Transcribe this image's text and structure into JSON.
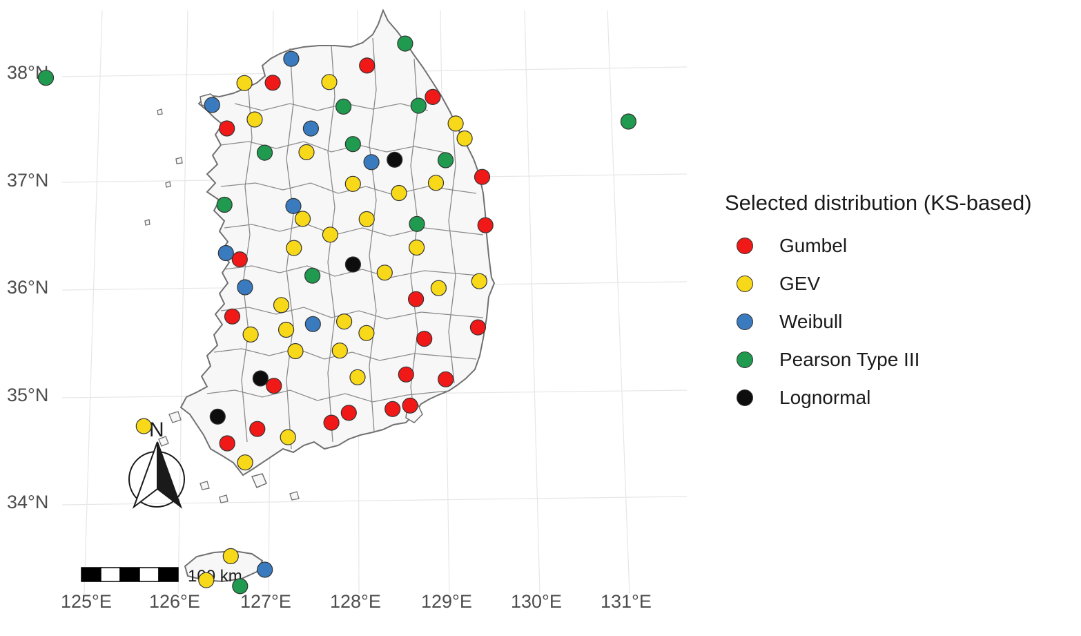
{
  "legend": {
    "title": "Selected distribution (KS-based)",
    "items": [
      {
        "label": "Gumbel",
        "color": "#f11818"
      },
      {
        "label": "GEV",
        "color": "#f8d91a"
      },
      {
        "label": "Weibull",
        "color": "#3a7bbf"
      },
      {
        "label": "Pearson Type III",
        "color": "#1f9a4f"
      },
      {
        "label": "Lognormal",
        "color": "#0d0d0d"
      }
    ]
  },
  "axes": {
    "lat_labels": [
      "38°N",
      "37°N",
      "36°N",
      "35°N",
      "34°N"
    ],
    "lon_labels": [
      "125°E",
      "126°E",
      "127°E",
      "128°E",
      "129°E",
      "130°E",
      "131°E"
    ]
  },
  "scale_bar": {
    "label": "100 km"
  },
  "north_arrow": {
    "label": "N"
  },
  "chart_data": {
    "type": "scatter",
    "title": "",
    "legend_title": "Selected distribution (KS-based)",
    "xlabel": "",
    "ylabel": "",
    "xlim": [
      124.8,
      131.5
    ],
    "ylim": [
      33.1,
      38.6
    ],
    "series": [
      {
        "name": "Gumbel",
        "points": [
          {
            "lon": 128.1,
            "lat": 38.05
          },
          {
            "lon": 127.1,
            "lat": 37.9
          },
          {
            "lon": 128.8,
            "lat": 37.75
          },
          {
            "lon": 126.6,
            "lat": 37.48
          },
          {
            "lon": 129.35,
            "lat": 37.0
          },
          {
            "lon": 129.4,
            "lat": 36.55
          },
          {
            "lon": 126.7,
            "lat": 36.26
          },
          {
            "lon": 128.65,
            "lat": 35.87
          },
          {
            "lon": 126.6,
            "lat": 35.73
          },
          {
            "lon": 129.35,
            "lat": 35.6
          },
          {
            "lon": 128.75,
            "lat": 35.5
          },
          {
            "lon": 127.05,
            "lat": 35.08
          },
          {
            "lon": 128.55,
            "lat": 35.17
          },
          {
            "lon": 129.0,
            "lat": 35.12
          },
          {
            "lon": 127.9,
            "lat": 34.82
          },
          {
            "lon": 127.7,
            "lat": 34.73
          },
          {
            "lon": 128.4,
            "lat": 34.85
          },
          {
            "lon": 128.6,
            "lat": 34.88
          },
          {
            "lon": 126.85,
            "lat": 34.68
          },
          {
            "lon": 126.5,
            "lat": 34.55
          }
        ]
      },
      {
        "name": "GEV",
        "points": [
          {
            "lon": 126.8,
            "lat": 37.9
          },
          {
            "lon": 127.7,
            "lat": 37.9
          },
          {
            "lon": 126.9,
            "lat": 37.56
          },
          {
            "lon": 129.05,
            "lat": 37.5
          },
          {
            "lon": 129.15,
            "lat": 37.36
          },
          {
            "lon": 127.45,
            "lat": 37.25
          },
          {
            "lon": 127.95,
            "lat": 36.95
          },
          {
            "lon": 128.85,
            "lat": 36.95
          },
          {
            "lon": 128.45,
            "lat": 36.86
          },
          {
            "lon": 127.4,
            "lat": 36.63
          },
          {
            "lon": 128.1,
            "lat": 36.62
          },
          {
            "lon": 127.7,
            "lat": 36.48
          },
          {
            "lon": 127.3,
            "lat": 36.36
          },
          {
            "lon": 128.65,
            "lat": 36.35
          },
          {
            "lon": 128.3,
            "lat": 36.12
          },
          {
            "lon": 129.35,
            "lat": 36.03
          },
          {
            "lon": 128.9,
            "lat": 35.97
          },
          {
            "lon": 127.15,
            "lat": 35.83
          },
          {
            "lon": 127.85,
            "lat": 35.67
          },
          {
            "lon": 127.2,
            "lat": 35.6
          },
          {
            "lon": 128.1,
            "lat": 35.56
          },
          {
            "lon": 126.8,
            "lat": 35.56
          },
          {
            "lon": 127.3,
            "lat": 35.4
          },
          {
            "lon": 127.8,
            "lat": 35.4
          },
          {
            "lon": 128.0,
            "lat": 35.15
          },
          {
            "lon": 127.2,
            "lat": 34.6
          },
          {
            "lon": 126.7,
            "lat": 34.37
          },
          {
            "lon": 126.5,
            "lat": 33.5
          },
          {
            "lon": 126.2,
            "lat": 33.28
          },
          {
            "lon": 125.55,
            "lat": 34.72
          }
        ]
      },
      {
        "name": "Weibull",
        "points": [
          {
            "lon": 127.3,
            "lat": 38.12
          },
          {
            "lon": 126.45,
            "lat": 37.7
          },
          {
            "lon": 127.5,
            "lat": 37.47
          },
          {
            "lon": 128.15,
            "lat": 37.15
          },
          {
            "lon": 127.3,
            "lat": 36.75
          },
          {
            "lon": 126.55,
            "lat": 36.32
          },
          {
            "lon": 126.75,
            "lat": 36.0
          },
          {
            "lon": 127.5,
            "lat": 35.65
          },
          {
            "lon": 126.9,
            "lat": 33.37
          }
        ]
      },
      {
        "name": "Pearson Type III",
        "points": [
          {
            "lon": 124.7,
            "lat": 37.97
          },
          {
            "lon": 128.5,
            "lat": 38.25
          },
          {
            "lon": 127.85,
            "lat": 37.67
          },
          {
            "lon": 128.65,
            "lat": 37.67
          },
          {
            "lon": 127.95,
            "lat": 37.32
          },
          {
            "lon": 127.0,
            "lat": 37.25
          },
          {
            "lon": 128.95,
            "lat": 37.16
          },
          {
            "lon": 126.55,
            "lat": 36.77
          },
          {
            "lon": 128.65,
            "lat": 36.57
          },
          {
            "lon": 127.5,
            "lat": 36.1
          },
          {
            "lon": 130.9,
            "lat": 37.5
          },
          {
            "lon": 126.6,
            "lat": 33.22
          }
        ]
      },
      {
        "name": "Lognormal",
        "points": [
          {
            "lon": 128.4,
            "lat": 37.17
          },
          {
            "lon": 127.95,
            "lat": 36.2
          },
          {
            "lon": 126.9,
            "lat": 35.15
          },
          {
            "lon": 126.4,
            "lat": 34.8
          }
        ]
      }
    ]
  }
}
